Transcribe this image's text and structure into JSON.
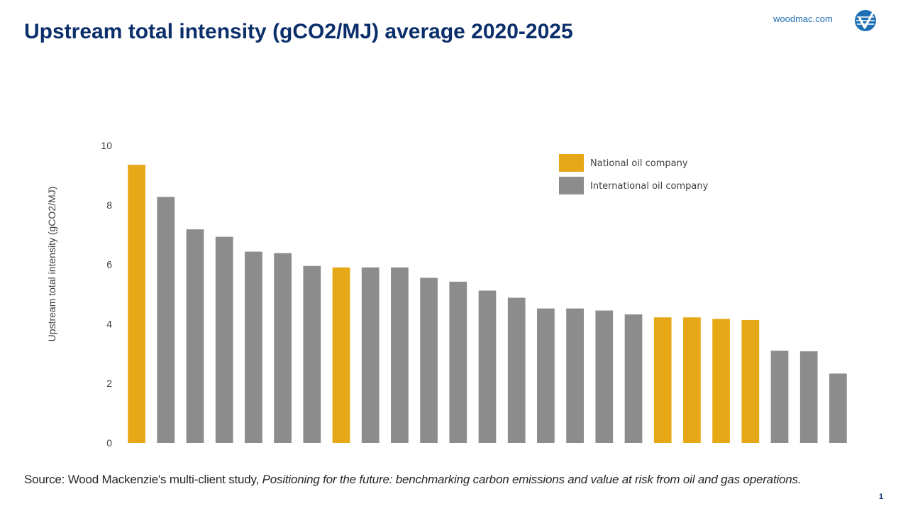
{
  "header": {
    "title": "Upstream total intensity (gCO2/MJ) average 2020-2025",
    "brand_link": "woodmac.com",
    "logo_icon": "wood-mackenzie-logo"
  },
  "footer": {
    "source_prefix": "Source: Wood Mackenzie's multi-client study, ",
    "source_italic": "Positioning for the future: benchmarking carbon emissions and value at risk from oil and gas operations.",
    "page_number": "1"
  },
  "colors": {
    "noc": "#E6A817",
    "ioc": "#8C8C8C",
    "title": "#0B2F6B"
  },
  "chart_data": {
    "type": "bar",
    "title": "Upstream total intensity (gCO2/MJ) average 2020-2025",
    "xlabel": "",
    "ylabel": "Upstream total intensity (gCO2/MJ)",
    "ylim": [
      0,
      10
    ],
    "yticks": [
      0,
      2,
      4,
      6,
      8,
      10
    ],
    "grid": false,
    "legend_position": "top-right",
    "series": [
      {
        "name": "National oil company",
        "key": "noc"
      },
      {
        "name": "International oil company",
        "key": "ioc"
      }
    ],
    "values": [
      9.35,
      8.27,
      7.18,
      6.93,
      6.43,
      6.38,
      5.95,
      5.9,
      5.9,
      5.9,
      5.55,
      5.42,
      5.12,
      4.88,
      4.52,
      4.52,
      4.45,
      4.32,
      4.22,
      4.22,
      4.17,
      4.13,
      3.1,
      3.08,
      2.33
    ],
    "groups": [
      "noc",
      "ioc",
      "ioc",
      "ioc",
      "ioc",
      "ioc",
      "ioc",
      "noc",
      "ioc",
      "ioc",
      "ioc",
      "ioc",
      "ioc",
      "ioc",
      "ioc",
      "ioc",
      "ioc",
      "ioc",
      "noc",
      "noc",
      "noc",
      "noc",
      "ioc",
      "ioc",
      "ioc"
    ]
  }
}
